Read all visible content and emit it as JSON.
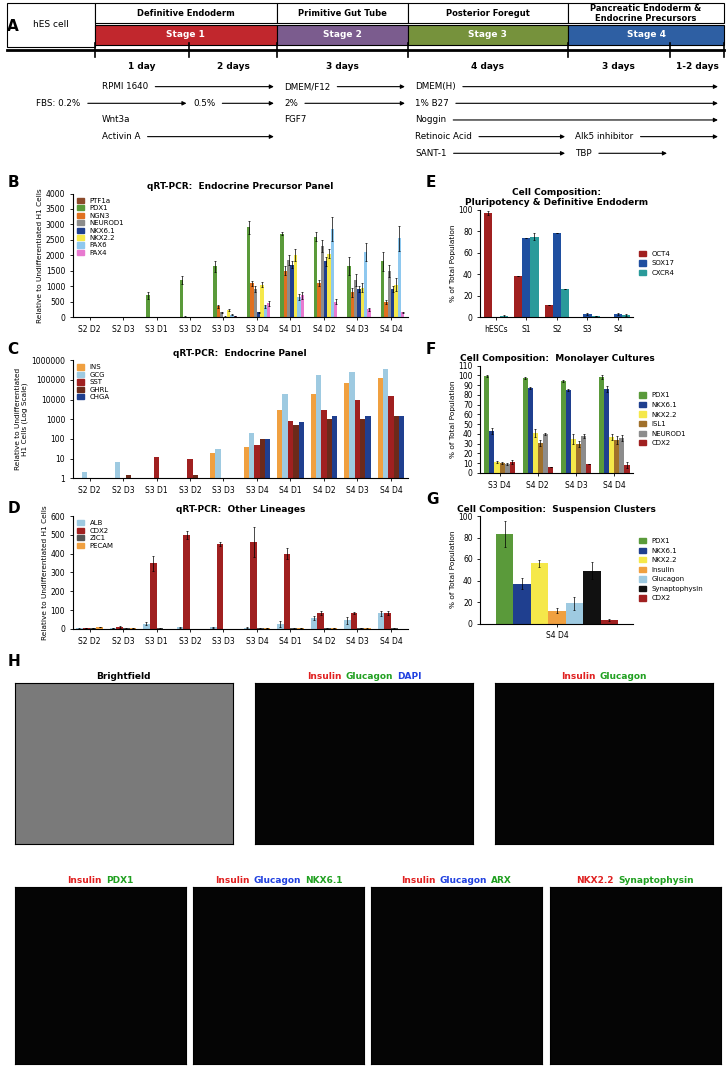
{
  "panel_labels": [
    "A",
    "B",
    "C",
    "D",
    "E",
    "F",
    "G",
    "H"
  ],
  "diagram": {
    "header": "hES cell",
    "stages": [
      {
        "name": "Definitive Endoderm",
        "label": "Stage 1",
        "color": "#c1272d"
      },
      {
        "name": "Primitive Gut Tube",
        "label": "Stage 2",
        "color": "#7b5c8e"
      },
      {
        "name": "Posterior Foregut",
        "label": "Stage 3",
        "color": "#76923c"
      },
      {
        "name": "Pancreatic Endoderm &\nEndocrine Precursors",
        "label": "Stage 4",
        "color": "#2e5fa3"
      }
    ],
    "durations": [
      "1 day",
      "2 days",
      "3 days",
      "4 days",
      "3 days",
      "1-2 days"
    ],
    "rows": [
      [
        "RPMI 1640",
        "DMEM/F12",
        "DMEM(H)"
      ],
      [
        "FBS: 0.2%",
        "0.5%",
        "2%",
        "1% B27"
      ],
      [
        "Wnt3a",
        "FGF7",
        "Noggin"
      ],
      [
        "Activin A",
        "Retinoic Acid",
        "Alk5 inhibitor"
      ],
      [
        "SANT-1",
        "TBP"
      ]
    ]
  },
  "chart_data": [
    {
      "type": "bar",
      "title": "qRT-PCR:  Endocrine Precursor Panel",
      "ylabel": "Relative to Undifferentiated H1 Cells",
      "categories": [
        "S2 D2",
        "S2 D3",
        "S3 D1",
        "S3 D2",
        "S3 D3",
        "S3 D4",
        "S4 D1",
        "S4 D2",
        "S4 D3",
        "S4 D4"
      ],
      "ylim": [
        0,
        4000
      ],
      "yticks": [
        0,
        500,
        1000,
        1500,
        2000,
        2500,
        3000,
        3500,
        4000
      ],
      "legend": "upper left",
      "series": [
        {
          "name": "PTF1a",
          "color": "#8b4a2b",
          "values": [
            0,
            0,
            0,
            0,
            0,
            0,
            0,
            0,
            0,
            0
          ],
          "errors": [
            0,
            0,
            0,
            0,
            0,
            0,
            0,
            0,
            0,
            0
          ]
        },
        {
          "name": "PDX1",
          "color": "#5a9a3a",
          "values": [
            0,
            0,
            700,
            1200,
            1650,
            2900,
            2700,
            2600,
            1650,
            1800
          ],
          "errors": [
            0,
            0,
            120,
            120,
            180,
            200,
            50,
            140,
            300,
            300
          ]
        },
        {
          "name": "NGN3",
          "color": "#e07020",
          "values": [
            0,
            0,
            0,
            20,
            350,
            1100,
            1500,
            1100,
            800,
            500
          ],
          "errors": [
            0,
            0,
            0,
            5,
            50,
            80,
            150,
            100,
            150,
            60
          ]
        },
        {
          "name": "NEUROD1",
          "color": "#8c8c8c",
          "values": [
            0,
            0,
            0,
            0,
            150,
            900,
            1850,
            2300,
            1200,
            1500
          ],
          "errors": [
            0,
            0,
            0,
            0,
            30,
            100,
            150,
            200,
            200,
            200
          ]
        },
        {
          "name": "NKX6.1",
          "color": "#1f3f8f",
          "values": [
            0,
            0,
            0,
            0,
            20,
            150,
            1700,
            1800,
            900,
            900
          ],
          "errors": [
            0,
            0,
            0,
            0,
            5,
            30,
            100,
            150,
            100,
            100
          ]
        },
        {
          "name": "NKX2.2",
          "color": "#f5e84a",
          "values": [
            0,
            0,
            0,
            0,
            220,
            1050,
            2000,
            2050,
            950,
            1050
          ],
          "errors": [
            0,
            0,
            0,
            0,
            30,
            80,
            200,
            150,
            150,
            200
          ]
        },
        {
          "name": "PAX6",
          "color": "#8ec8ef",
          "values": [
            0,
            0,
            0,
            0,
            80,
            350,
            650,
            2850,
            2100,
            2550
          ],
          "errors": [
            0,
            0,
            0,
            0,
            10,
            50,
            100,
            400,
            300,
            400
          ]
        },
        {
          "name": "PAX4",
          "color": "#e87ad0",
          "values": [
            0,
            0,
            0,
            0,
            40,
            450,
            700,
            500,
            250,
            150
          ],
          "errors": [
            0,
            0,
            0,
            0,
            10,
            80,
            100,
            80,
            50,
            30
          ]
        }
      ]
    },
    {
      "type": "bar",
      "title": "qRT-PCR:  Endocrine Panel",
      "ylabel": "Relative to Undifferentiated\nH1 Cells (Log Scale)",
      "log": "y",
      "categories": [
        "S2 D2",
        "S2 D3",
        "S3 D1",
        "S3 D2",
        "S3 D3",
        "S3 D4",
        "S4 D1",
        "S4 D2",
        "S4 D3",
        "S4 D4"
      ],
      "ylim": [
        1,
        1000000
      ],
      "yticks": [
        1,
        10,
        100,
        1000,
        10000,
        100000,
        1000000
      ],
      "legend": "upper left",
      "series": [
        {
          "name": "INS",
          "color": "#f0a040",
          "values": [
            null,
            null,
            null,
            null,
            20,
            40,
            3000,
            20000,
            70000,
            120000
          ]
        },
        {
          "name": "GCG",
          "color": "#9ecae1",
          "values": [
            2,
            7,
            null,
            null,
            30,
            200,
            20000,
            180000,
            250000,
            350000
          ]
        },
        {
          "name": "SST",
          "color": "#a02020",
          "values": [
            null,
            null,
            12,
            10,
            null,
            50,
            800,
            3000,
            9000,
            15000
          ]
        },
        {
          "name": "GHRL",
          "color": "#6b2a1a",
          "values": [
            null,
            1.5,
            null,
            1.5,
            null,
            100,
            500,
            1000,
            1000,
            1500
          ]
        },
        {
          "name": "CHGA",
          "color": "#1f3f8f",
          "values": [
            null,
            null,
            null,
            null,
            null,
            100,
            700,
            1500,
            1500,
            1500
          ]
        }
      ]
    },
    {
      "type": "bar",
      "title": "qRT-PCR:  Other Lineages",
      "ylabel": "Relative to Undifferentiated H1 Cells",
      "categories": [
        "S2 D2",
        "S2 D3",
        "S3 D1",
        "S3 D2",
        "S3 D3",
        "S3 D4",
        "S4 D1",
        "S4 D2",
        "S4 D3",
        "S4 D4"
      ],
      "ylim": [
        0,
        600
      ],
      "yticks": [
        0,
        100,
        200,
        300,
        400,
        500,
        600
      ],
      "legend": "upper left",
      "series": [
        {
          "name": "ALB",
          "color": "#9ecae1",
          "values": [
            2,
            4,
            28,
            8,
            8,
            7,
            25,
            57,
            45,
            82
          ],
          "errors": [
            1,
            1,
            8,
            2,
            2,
            2,
            15,
            10,
            20,
            15
          ]
        },
        {
          "name": "CDX2",
          "color": "#a02020",
          "values": [
            5,
            10,
            350,
            500,
            450,
            460,
            400,
            83,
            83,
            83
          ],
          "errors": [
            2,
            3,
            40,
            20,
            10,
            80,
            30,
            10,
            5,
            10
          ]
        },
        {
          "name": "ZIC1",
          "color": "#555555",
          "values": [
            3,
            2,
            2,
            1,
            1,
            2,
            2,
            2,
            3,
            2
          ],
          "errors": [
            1,
            1,
            1,
            0,
            0,
            1,
            1,
            1,
            1,
            1
          ]
        },
        {
          "name": "PECAM",
          "color": "#f0a040",
          "values": [
            10,
            3,
            1,
            1,
            1,
            2,
            4,
            5,
            2,
            1
          ],
          "errors": [
            2,
            1,
            0,
            0,
            0,
            0,
            1,
            1,
            1,
            0
          ]
        }
      ]
    },
    {
      "type": "bar",
      "title": "Cell Composition:\nPluripotency & Definitive Endoderm",
      "ylabel": "% of Total Population",
      "categories": [
        "hESCs",
        "S1",
        "S2",
        "S3",
        "S4"
      ],
      "ylim": [
        0,
        100
      ],
      "yticks": [
        0,
        20,
        40,
        60,
        80,
        100
      ],
      "legend": "right",
      "series": [
        {
          "name": "OCT4",
          "color": "#a02020",
          "values": [
            97,
            38,
            11,
            0,
            0
          ],
          "errors": [
            2,
            0,
            0,
            0,
            0
          ]
        },
        {
          "name": "SOX17",
          "color": "#1f4fa0",
          "values": [
            0,
            74,
            78,
            3,
            3
          ],
          "errors": [
            0,
            0,
            0,
            1,
            1
          ]
        },
        {
          "name": "CXCR4",
          "color": "#2a9a9a",
          "values": [
            1,
            75,
            26,
            1,
            2
          ],
          "errors": [
            1,
            3,
            0,
            0,
            1
          ]
        }
      ]
    },
    {
      "type": "bar",
      "title": "Cell Composition:  Monolayer Cultures",
      "ylabel": "% of Total Population",
      "categories": [
        "S3 D4",
        "S4 D2",
        "S4 D3",
        "S4 D4"
      ],
      "ylim": [
        0,
        110
      ],
      "yticks": [
        0,
        10,
        20,
        30,
        40,
        50,
        60,
        70,
        80,
        90,
        100,
        110
      ],
      "legend": "right",
      "series": [
        {
          "name": "PDX1",
          "color": "#5a9a3a",
          "values": [
            99,
            97,
            94,
            98
          ],
          "errors": [
            1,
            1,
            1,
            2
          ]
        },
        {
          "name": "NKX6.1",
          "color": "#1f3f8f",
          "values": [
            43,
            87,
            85,
            86
          ],
          "errors": [
            3,
            1,
            1,
            3
          ]
        },
        {
          "name": "NKX2.2",
          "color": "#f5e84a",
          "values": [
            11,
            41,
            35,
            37
          ],
          "errors": [
            1,
            4,
            5,
            3
          ]
        },
        {
          "name": "ISL1",
          "color": "#a0702a",
          "values": [
            10,
            31,
            30,
            34
          ],
          "errors": [
            1,
            3,
            3,
            4
          ]
        },
        {
          "name": "NEUROD1",
          "color": "#8c8c8c",
          "values": [
            9,
            40,
            38,
            36
          ],
          "errors": [
            1,
            1,
            2,
            3
          ]
        },
        {
          "name": "CDX2",
          "color": "#a02020",
          "values": [
            11,
            6,
            9,
            8
          ],
          "errors": [
            2,
            0,
            0,
            3
          ]
        }
      ]
    },
    {
      "type": "bar",
      "title": "Cell Composition:  Suspension Clusters",
      "ylabel": "% of Total Population",
      "categories": [
        "S4 D4"
      ],
      "ylim": [
        0,
        100
      ],
      "yticks": [
        0,
        20,
        40,
        60,
        80,
        100
      ],
      "legend": "right",
      "series": [
        {
          "name": "PDX1",
          "color": "#5a9a3a",
          "values": [
            83
          ],
          "errors": [
            12
          ]
        },
        {
          "name": "NKX6.1",
          "color": "#1f3f8f",
          "values": [
            37
          ],
          "errors": [
            5
          ]
        },
        {
          "name": "NKX2.2",
          "color": "#f5e84a",
          "values": [
            56
          ],
          "errors": [
            3
          ]
        },
        {
          "name": "Insulin",
          "color": "#f0a040",
          "values": [
            12
          ],
          "errors": [
            2
          ]
        },
        {
          "name": "Glucagon",
          "color": "#9ecae1",
          "values": [
            19
          ],
          "errors": [
            6
          ]
        },
        {
          "name": "Synaptophysin",
          "color": "#111111",
          "values": [
            49
          ],
          "errors": [
            8
          ]
        },
        {
          "name": "CDX2",
          "color": "#a02020",
          "values": [
            3
          ],
          "errors": [
            1
          ]
        }
      ]
    }
  ],
  "images": [
    [
      {
        "text": "Brightfield",
        "color": "#000000"
      }
    ],
    [
      {
        "text": "Insulin",
        "color": "#e02020"
      },
      {
        "text": "Glucagon",
        "color": "#20a020"
      },
      {
        "text": "DAPI",
        "color": "#2040e0"
      }
    ],
    [
      {
        "text": "Insulin",
        "color": "#e02020"
      },
      {
        "text": "Glucagon",
        "color": "#20a020"
      }
    ],
    [
      {
        "text": "Insulin",
        "color": "#e02020"
      },
      {
        "text": "PDX1",
        "color": "#20a020"
      }
    ],
    [
      {
        "text": "Insulin",
        "color": "#e02020"
      },
      {
        "text": "Glucagon",
        "color": "#2040e0"
      },
      {
        "text": "NKX6.1",
        "color": "#20a020"
      }
    ],
    [
      {
        "text": "Insulin",
        "color": "#e02020"
      },
      {
        "text": "Glucagon",
        "color": "#2040e0"
      },
      {
        "text": "ARX",
        "color": "#20a020"
      }
    ],
    [
      {
        "text": "NKX2.2",
        "color": "#e02020"
      },
      {
        "text": "Synaptophysin",
        "color": "#20a020"
      }
    ]
  ]
}
